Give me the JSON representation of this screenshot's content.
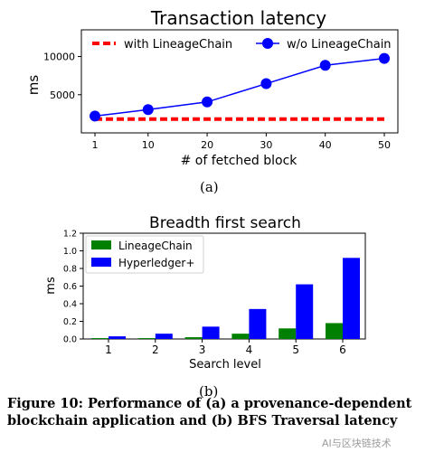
{
  "chart_data": [
    {
      "type": "line",
      "title": "Transaction latency",
      "xlabel": "# of fetched block",
      "ylabel": "ms",
      "x": [
        1,
        10,
        20,
        30,
        40,
        50
      ],
      "xtick_labels": [
        "1",
        "10",
        "20",
        "30",
        "40",
        "50"
      ],
      "yticks": [
        5000,
        10000
      ],
      "ytick_labels": [
        "5000",
        "10000"
      ],
      "ylim": [
        0,
        13500
      ],
      "series": [
        {
          "name": "with LineageChain",
          "values": [
            1800,
            1800,
            1800,
            1800,
            1800,
            1800
          ],
          "color": "#ff0000",
          "style": "dashed"
        },
        {
          "name": "w/o LineageChain",
          "values": [
            2200,
            3050,
            4050,
            6450,
            8850,
            9750
          ],
          "color": "#0000ff",
          "style": "solid-marker"
        }
      ],
      "legend": "top",
      "grid": false,
      "sublabel": "(a)"
    },
    {
      "type": "bar",
      "title": "Breadth first search",
      "xlabel": "Search level",
      "ylabel": "ms",
      "categories": [
        "1",
        "2",
        "3",
        "4",
        "5",
        "6"
      ],
      "yticks": [
        0.0,
        0.2,
        0.4,
        0.6,
        0.8,
        1.0,
        1.2
      ],
      "ytick_labels": [
        "0.0",
        "0.2",
        "0.4",
        "0.6",
        "0.8",
        "1.0",
        "1.2"
      ],
      "ylim": [
        0,
        1.2
      ],
      "series": [
        {
          "name": "LineageChain",
          "values": [
            0.01,
            0.01,
            0.02,
            0.06,
            0.12,
            0.18
          ],
          "color": "#008000"
        },
        {
          "name": "Hyperledger+",
          "values": [
            0.03,
            0.06,
            0.14,
            0.34,
            0.62,
            0.92
          ],
          "color": "#0000ff"
        }
      ],
      "legend": "top-left",
      "grid": false,
      "sublabel": "(b)"
    }
  ],
  "caption": "Figure 10:  Performance of (a) a provenance-dependent blockchain application and (b) BFS Traversal latency",
  "watermark": "AI与区块链技术"
}
